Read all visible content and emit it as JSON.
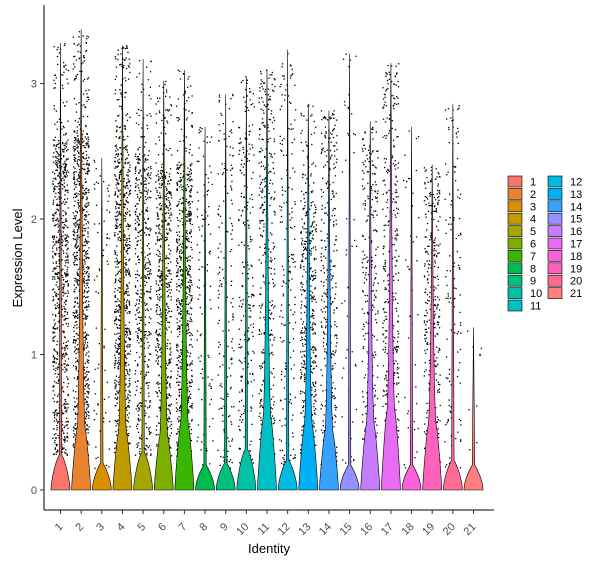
{
  "chart_data": {
    "type": "violin",
    "title": "",
    "xlabel": "Identity",
    "ylabel": "Expression Level",
    "ylim": [
      -0.18,
      3.5
    ],
    "yticks": [
      0,
      1,
      2,
      3
    ],
    "categories": [
      "1",
      "2",
      "3",
      "4",
      "5",
      "6",
      "7",
      "8",
      "9",
      "10",
      "11",
      "12",
      "13",
      "14",
      "15",
      "16",
      "17",
      "18",
      "19",
      "20",
      "21"
    ],
    "colors": [
      "#F8766D",
      "#EA8331",
      "#D89000",
      "#C09B00",
      "#A3A500",
      "#7CAE00",
      "#39B600",
      "#00BB4E",
      "#00BF7D",
      "#00C1A3",
      "#00BFC4",
      "#00BAE0",
      "#00B0F6",
      "#35A2FF",
      "#9590FF",
      "#C77CFF",
      "#E76BF3",
      "#FA62DB",
      "#FF62BC",
      "#FF6C91",
      "#FF7F7F"
    ],
    "max_values": [
      3.3,
      3.4,
      2.45,
      3.28,
      3.18,
      3.02,
      3.1,
      2.68,
      2.92,
      3.05,
      3.1,
      3.25,
      2.85,
      2.8,
      3.22,
      2.72,
      3.15,
      2.68,
      2.4,
      2.85,
      1.2
    ],
    "point_density": [
      0.85,
      1.0,
      0.08,
      0.9,
      0.55,
      0.7,
      0.75,
      0.12,
      0.2,
      0.28,
      0.42,
      0.2,
      0.52,
      0.38,
      0.06,
      0.33,
      0.45,
      0.05,
      0.4,
      0.15,
      0.01
    ],
    "violin_peak_height": [
      0.08,
      0.28,
      0.02,
      0.25,
      0.1,
      0.22,
      0.3,
      0.0,
      0.02,
      0.12,
      0.35,
      0.04,
      0.3,
      0.25,
      0.0,
      0.3,
      0.4,
      0.0,
      0.3,
      0.04,
      0.0
    ],
    "legend": {
      "placement": "right",
      "columns": [
        [
          "1",
          "2",
          "3",
          "4",
          "5",
          "6",
          "7",
          "8",
          "9",
          "10",
          "11"
        ],
        [
          "12",
          "13",
          "14",
          "15",
          "16",
          "17",
          "18",
          "19",
          "20",
          "21"
        ]
      ]
    }
  }
}
